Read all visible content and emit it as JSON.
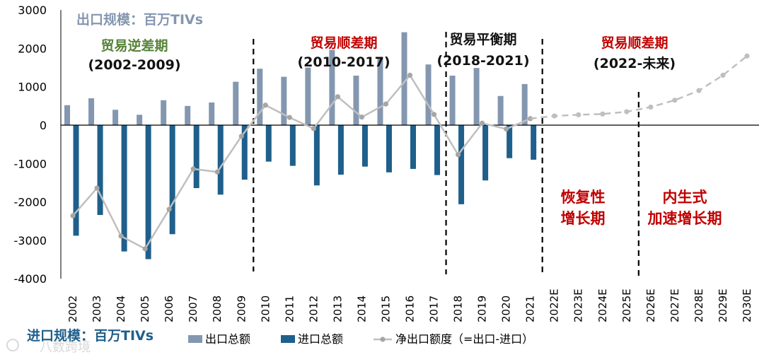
{
  "chart_data": {
    "type": "bar",
    "categories": [
      "2002",
      "2003",
      "2004",
      "2005",
      "2006",
      "2007",
      "2008",
      "2009",
      "2010",
      "2011",
      "2012",
      "2013",
      "2014",
      "2015",
      "2016",
      "2017",
      "2018",
      "2019",
      "2020",
      "2021",
      "2022E",
      "2023E",
      "2024E",
      "2025E",
      "2026E",
      "2027E",
      "2028E",
      "2029E",
      "2030E"
    ],
    "ylim": [
      -4000,
      3000
    ],
    "yticks": [
      3000,
      2000,
      1000,
      0,
      -1000,
      -2000,
      -3000,
      -4000
    ],
    "series": [
      {
        "name": "出口总额",
        "kind": "bar",
        "color": "#8497b0",
        "values": [
          520,
          700,
          400,
          270,
          650,
          500,
          590,
          1130,
          1470,
          1260,
          1500,
          1960,
          1290,
          1760,
          2420,
          1580,
          1290,
          1490,
          760,
          1070,
          null,
          null,
          null,
          null,
          null,
          null,
          null,
          null,
          null
        ]
      },
      {
        "name": "进口总额",
        "kind": "bar",
        "color": "#1f5f8b",
        "values": [
          -2880,
          -2340,
          -3290,
          -3490,
          -2840,
          -1640,
          -1810,
          -1420,
          -950,
          -1060,
          -1570,
          -1290,
          -1080,
          -1230,
          -1140,
          -1300,
          -2060,
          -1440,
          -860,
          -900,
          null,
          null,
          null,
          null,
          null,
          null,
          null,
          null,
          null
        ]
      },
      {
        "name": "净出口额度（=出口-进口）",
        "kind": "line",
        "color": "#bfbfbf",
        "values": [
          -2360,
          -1640,
          -2890,
          -3220,
          -2190,
          -1140,
          -1220,
          -290,
          520,
          200,
          -90,
          740,
          210,
          550,
          1300,
          280,
          -770,
          50,
          -100,
          170,
          null,
          null,
          null,
          null,
          null,
          null,
          null,
          null,
          null
        ],
        "forecast": [
          null,
          null,
          null,
          null,
          null,
          null,
          null,
          null,
          null,
          null,
          null,
          null,
          null,
          null,
          null,
          null,
          null,
          null,
          null,
          170,
          240,
          270,
          290,
          350,
          470,
          650,
          900,
          1300,
          1800
        ]
      }
    ],
    "legend": [
      "出口总额",
      "进口总额",
      "净出口额度（=出口-进口）"
    ],
    "legend_position": "bottom",
    "export_unit_label": "出口规模：百万TIVs",
    "import_unit_label": "进口规模：百万TIVs",
    "divider_after": [
      "2009",
      "2017",
      "2021",
      "2025E"
    ],
    "periods": [
      {
        "title": "贸易逆差期",
        "years": "(2002-2009)",
        "title_color": "#548235"
      },
      {
        "title": "贸易顺差期",
        "years": "(2010-2017)",
        "title_color": "#c00000"
      },
      {
        "title": "贸易平衡期",
        "years": "(2018-2021)",
        "title_color": "#111111"
      },
      {
        "title": "贸易顺差期",
        "years": "(2022-未来)",
        "title_color": "#c00000"
      }
    ],
    "phases": [
      {
        "lines": [
          "恢复性",
          "增长期"
        ]
      },
      {
        "lines": [
          "内生式",
          "加速增长期"
        ]
      }
    ],
    "watermark": "八数跨境"
  }
}
